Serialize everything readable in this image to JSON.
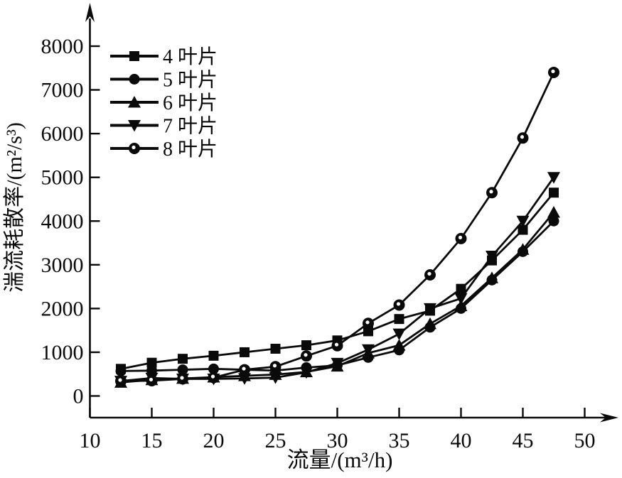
{
  "figure": {
    "background": "#ffffff",
    "ink_color": "#0a0a0a"
  },
  "chart_data": {
    "type": "line",
    "title": "",
    "xlabel": "流量/(m³/h)",
    "ylabel": "湍流耗散率/(m²/s³)",
    "x": [
      12.5,
      15,
      17.5,
      20,
      22.5,
      25,
      27.5,
      30,
      32.5,
      35,
      37.5,
      40,
      42.5,
      45,
      47.5
    ],
    "series": [
      {
        "name": "4 叶片",
        "marker": "square",
        "values": [
          620,
          760,
          850,
          920,
          1000,
          1080,
          1160,
          1270,
          1480,
          1760,
          1950,
          2450,
          3100,
          3800,
          4650
        ]
      },
      {
        "name": "5 叶片",
        "marker": "circle",
        "values": [
          570,
          580,
          600,
          620,
          600,
          580,
          650,
          700,
          880,
          1050,
          1570,
          2000,
          2650,
          3300,
          4000
        ]
      },
      {
        "name": "6 叶片",
        "marker": "triangle-up",
        "values": [
          310,
          370,
          400,
          430,
          460,
          490,
          550,
          680,
          980,
          1160,
          1650,
          2060,
          2700,
          3350,
          4200
        ]
      },
      {
        "name": "7 叶片",
        "marker": "triangle-down",
        "values": [
          340,
          410,
          390,
          390,
          400,
          420,
          540,
          750,
          1060,
          1420,
          2000,
          2230,
          3200,
          4000,
          5000
        ]
      },
      {
        "name": "8 叶片",
        "marker": "circle-dot",
        "values": [
          340,
          350,
          390,
          420,
          600,
          670,
          915,
          1150,
          1660,
          2080,
          2770,
          3600,
          4650,
          5900,
          7400
        ]
      }
    ],
    "x_ticks": [
      10,
      15,
      20,
      25,
      30,
      35,
      40,
      45,
      50
    ],
    "y_ticks": [
      0,
      1000,
      2000,
      3000,
      4000,
      5000,
      6000,
      7000,
      8000
    ],
    "xlim": [
      10,
      52.5
    ],
    "ylim": [
      0,
      8000
    ],
    "grid": false,
    "legend_position": "top-left",
    "line_color": "#0a0a0a"
  }
}
